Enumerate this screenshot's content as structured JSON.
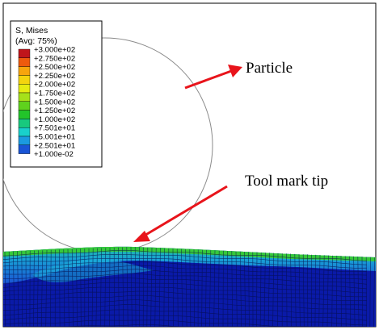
{
  "legend": {
    "title_line1": "S, Mises",
    "title_line2": "(Avg: 75%)",
    "levels": [
      {
        "label": "+3.000e+02",
        "color": "#c0151b"
      },
      {
        "label": "+2.750e+02",
        "color": "#ee5a0d"
      },
      {
        "label": "+2.500e+02",
        "color": "#f7a50d"
      },
      {
        "label": "+2.250e+02",
        "color": "#f4d40f"
      },
      {
        "label": "+2.000e+02",
        "color": "#e6ec12"
      },
      {
        "label": "+1.750e+02",
        "color": "#a6e11a"
      },
      {
        "label": "+1.500e+02",
        "color": "#5fd21d"
      },
      {
        "label": "+1.250e+02",
        "color": "#22c42a"
      },
      {
        "label": "+1.000e+02",
        "color": "#18c97e"
      },
      {
        "label": "+7.501e+01",
        "color": "#19d0cb"
      },
      {
        "label": "+5.001e+01",
        "color": "#1b9ae0"
      },
      {
        "label": "+2.501e+01",
        "color": "#1a55d6"
      },
      {
        "label": "+1.000e-02",
        "color": "#1420c8"
      }
    ]
  },
  "annotations": {
    "particle": "Particle",
    "tool_mark_tip": "Tool mark tip",
    "arrow_color": "#e8141b"
  },
  "colors": {
    "mesh_base": "#0a1aa8",
    "mesh_line": "#050d4a",
    "particle_outline": "#8a8a8a",
    "frame": "#000000"
  }
}
